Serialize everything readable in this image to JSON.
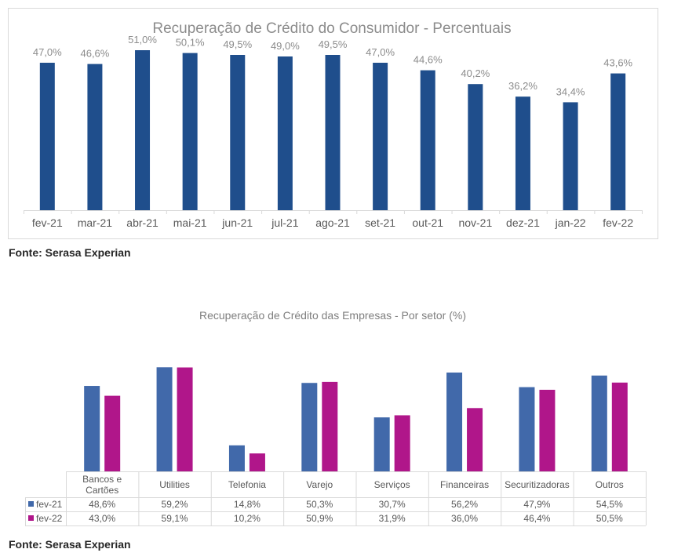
{
  "chart_data": [
    {
      "type": "bar",
      "title": "Recuperação de Crédito do Consumidor - Percentuais",
      "categories": [
        "fev-21",
        "mar-21",
        "abr-21",
        "mai-21",
        "jun-21",
        "jul-21",
        "ago-21",
        "set-21",
        "out-21",
        "nov-21",
        "dez-21",
        "jan-22",
        "fev-22"
      ],
      "values": [
        47.0,
        46.6,
        51.0,
        50.1,
        49.5,
        49.0,
        49.5,
        47.0,
        44.6,
        40.2,
        36.2,
        34.4,
        43.6
      ],
      "data_labels": [
        "47,0%",
        "46,6%",
        "51,0%",
        "50,1%",
        "49,5%",
        "49,0%",
        "49,5%",
        "47,0%",
        "44,6%",
        "40,2%",
        "36,2%",
        "34,4%",
        "43,6%"
      ],
      "ylim": [
        0,
        57
      ],
      "grid": false,
      "color": "#1f4e8c"
    },
    {
      "type": "bar",
      "title": "Recuperação de Crédito das Empresas - Por setor (%)",
      "categories": [
        "Bancos e\nCartões",
        "Utilities",
        "Telefonia",
        "Varejo",
        "Serviços",
        "Financeiras",
        "Securitizadoras",
        "Outros"
      ],
      "series": [
        {
          "name": "fev-21",
          "color": "#4169aa",
          "values": [
            48.6,
            59.2,
            14.8,
            50.3,
            30.7,
            56.2,
            47.9,
            54.5
          ],
          "labels": [
            "48,6%",
            "59,2%",
            "14,8%",
            "50,3%",
            "30,7%",
            "56,2%",
            "47,9%",
            "54,5%"
          ]
        },
        {
          "name": "fev-22",
          "color": "#b0168a",
          "values": [
            43.0,
            59.1,
            10.2,
            50.9,
            31.9,
            36.0,
            46.4,
            50.5
          ],
          "labels": [
            "43,0%",
            "59,1%",
            "10,2%",
            "50,9%",
            "31,9%",
            "36,0%",
            "46,4%",
            "50,5%"
          ]
        }
      ],
      "ylim": [
        0,
        62
      ],
      "grid": false,
      "legend": "data-table"
    }
  ],
  "sources": {
    "source1": "Fonte: Serasa Experian",
    "source2": "Fonte: Serasa Experian"
  }
}
